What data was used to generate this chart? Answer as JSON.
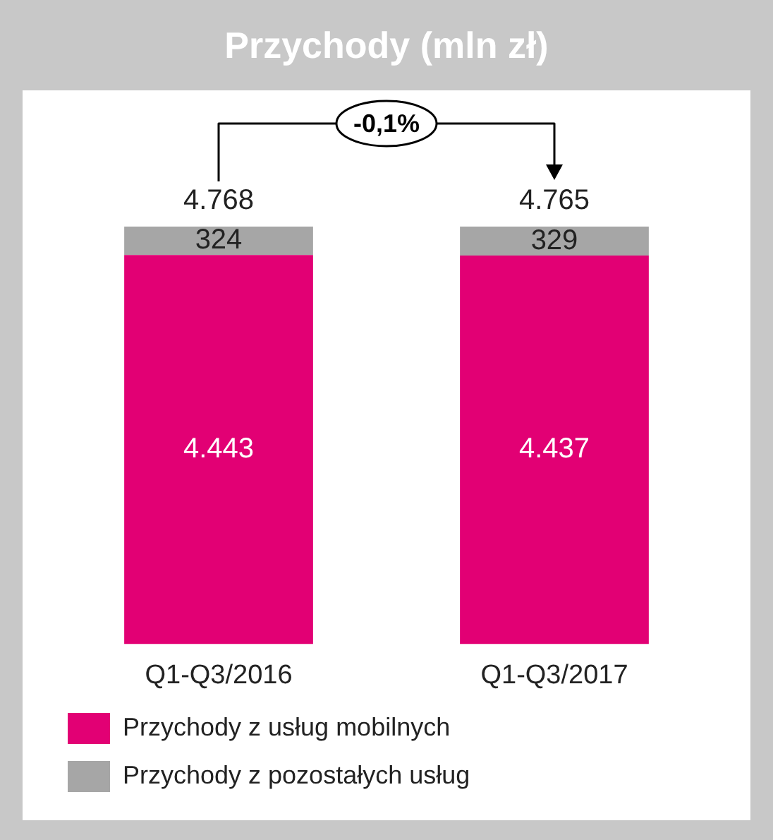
{
  "chart_data": {
    "type": "bar",
    "title": "Przychody (mln zł)",
    "stacked": true,
    "categories": [
      "Q1-Q3/2016",
      "Q1-Q3/2017"
    ],
    "series": [
      {
        "name": "Przychody z usług mobilnych",
        "color": "#e20074",
        "values": [
          4443,
          4437
        ],
        "value_labels": [
          "4.443",
          "4.437"
        ]
      },
      {
        "name": "Przychody z pozostałych usług",
        "color": "#a6a6a6",
        "values": [
          324,
          329
        ],
        "value_labels": [
          "324",
          "329"
        ]
      }
    ],
    "totals": [
      "4.768",
      "4.765"
    ],
    "annotations": [
      "-0,1%"
    ],
    "legend": "bottom",
    "grid": false
  }
}
